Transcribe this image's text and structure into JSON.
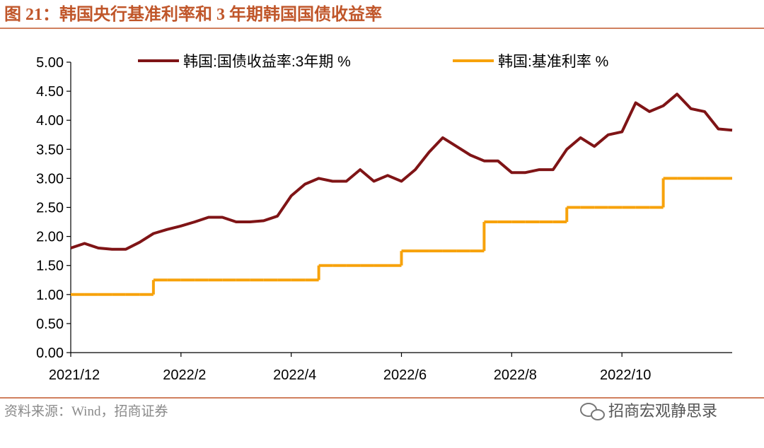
{
  "chart_data": {
    "type": "line",
    "title": "图 21：韩国央行基准利率和 3 年期韩国国债收益率",
    "source": "资料来源：Wind，招商证券",
    "watermark": "招商宏观静思录",
    "categories": [
      "2021/12",
      null,
      null,
      null,
      null,
      null,
      null,
      null,
      "2022/2",
      null,
      null,
      null,
      null,
      null,
      null,
      null,
      "2022/4",
      null,
      null,
      null,
      null,
      null,
      null,
      null,
      "2022/6",
      null,
      null,
      null,
      null,
      null,
      null,
      null,
      "2022/8",
      null,
      null,
      null,
      null,
      null,
      null,
      null,
      "2022/10",
      null,
      null,
      null,
      null,
      null,
      null,
      null,
      null
    ],
    "series": [
      {
        "name": "韩国:国债收益率:3年期 %",
        "color": "#7f1416",
        "values": [
          1.8,
          1.88,
          1.8,
          1.78,
          1.78,
          1.9,
          2.05,
          2.12,
          2.18,
          2.25,
          2.33,
          2.33,
          2.25,
          2.25,
          2.27,
          2.35,
          2.7,
          2.9,
          3.0,
          2.95,
          2.95,
          3.15,
          2.95,
          3.05,
          2.95,
          3.15,
          3.45,
          3.7,
          3.55,
          3.4,
          3.3,
          3.3,
          3.1,
          3.1,
          3.15,
          3.15,
          3.5,
          3.7,
          3.55,
          3.75,
          3.8,
          4.3,
          4.15,
          4.25,
          4.45,
          4.2,
          4.15,
          3.85,
          3.83
        ]
      },
      {
        "name": "韩国:基准利率 %",
        "color": "#f7a20b",
        "step": true,
        "values": [
          1.0,
          1.0,
          1.0,
          1.0,
          1.0,
          1.0,
          1.25,
          1.25,
          1.25,
          1.25,
          1.25,
          1.25,
          1.25,
          1.25,
          1.25,
          1.25,
          1.25,
          1.25,
          1.5,
          1.5,
          1.5,
          1.5,
          1.5,
          1.5,
          1.75,
          1.75,
          1.75,
          1.75,
          1.75,
          1.75,
          2.25,
          2.25,
          2.25,
          2.25,
          2.25,
          2.25,
          2.5,
          2.5,
          2.5,
          2.5,
          2.5,
          2.5,
          2.5,
          3.0,
          3.0,
          3.0,
          3.0,
          3.0,
          3.0
        ]
      }
    ],
    "ylim": [
      0,
      5
    ],
    "yticks": [
      {
        "value": 0,
        "label": "0.00"
      },
      {
        "value": 0.5,
        "label": "0.50"
      },
      {
        "value": 1,
        "label": "1.00"
      },
      {
        "value": 1.5,
        "label": "1.50"
      },
      {
        "value": 2,
        "label": "2.00"
      },
      {
        "value": 2.5,
        "label": "2.50"
      },
      {
        "value": 3,
        "label": "3.00"
      },
      {
        "value": 3.5,
        "label": "3.50"
      },
      {
        "value": 4,
        "label": "4.00"
      },
      {
        "value": 4.5,
        "label": "4.50"
      },
      {
        "value": 5,
        "label": "5.00"
      }
    ],
    "grid": false,
    "legend": "top"
  }
}
